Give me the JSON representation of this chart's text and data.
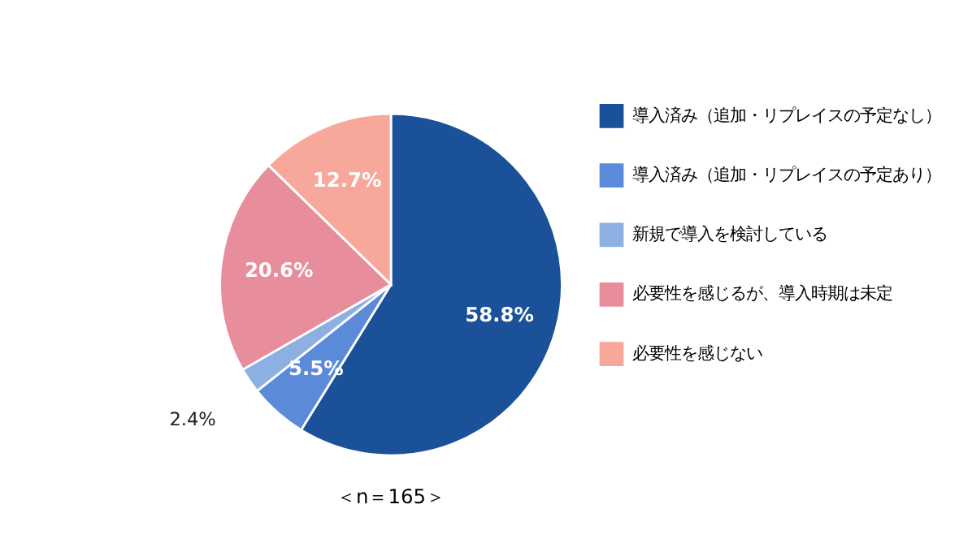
{
  "chart_data": {
    "type": "pie",
    "categories": [
      "導入済み（追加・リプレイスの予定なし）",
      "導入済み（追加・リプレイスの予定あり）",
      "新規で導入を検討している",
      "必要性を感じるが、導入時期は未定",
      "必要性を感じない"
    ],
    "values": [
      58.8,
      5.5,
      2.4,
      20.6,
      12.7
    ],
    "colors": [
      "#1b5199",
      "#5b8ad8",
      "#8cb0e2",
      "#e78d9c",
      "#f8a89a"
    ],
    "value_labels": [
      "58.8%",
      "5.5%",
      "2.4%",
      "20.6%",
      "12.7%"
    ],
    "annotations": [
      "＜n＝165＞"
    ],
    "legend": "right"
  }
}
